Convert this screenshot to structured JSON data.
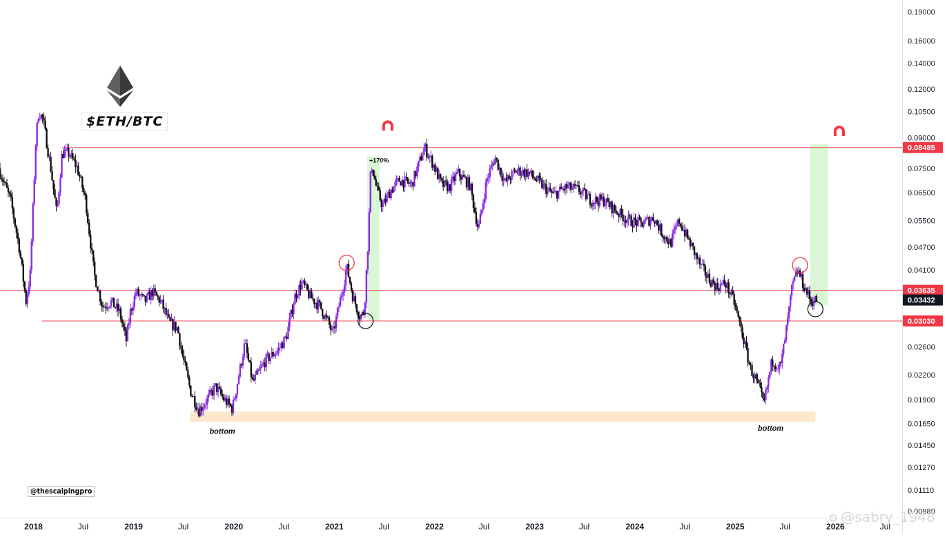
{
  "chart_data": {
    "type": "candlestick",
    "symbol": "$ETH/BTC",
    "handle": "@thescalpingpro",
    "watermark": "@sabry_1948",
    "x_range": [
      "2017-09-01",
      "2026-09-01"
    ],
    "y_range": [
      0.0095,
      0.215
    ],
    "y_scale": "log",
    "x_ticks": [
      "2018",
      "Jul",
      "2019",
      "Jul",
      "2020",
      "Jul",
      "2021",
      "Jul",
      "2022",
      "Jul",
      "2023",
      "Jul",
      "2024",
      "Jul",
      "2025",
      "Jul",
      "2026",
      "Jul"
    ],
    "y_ticks": [
      "0.19000",
      "0.16000",
      "0.14000",
      "0.12000",
      "0.10500",
      "0.09000",
      "0.07500",
      "0.06500",
      "0.05500",
      "0.04700",
      "0.04100",
      "0.02600",
      "0.02200",
      "0.01900",
      "0.01650",
      "0.01450",
      "0.01270",
      "0.01110",
      "0.00980"
    ],
    "price_labels": [
      {
        "value": 0.08485,
        "text": "0.08485",
        "color": "#f23645"
      },
      {
        "value": 0.03635,
        "text": "0.03635",
        "color": "#f23645"
      },
      {
        "value": 0.03432,
        "text": "0.03432",
        "color": "#131722"
      },
      {
        "value": 0.0303,
        "text": "0.03030",
        "color": "#f23645"
      }
    ],
    "horizontal_levels": [
      {
        "value": 0.08485,
        "from": "2018-04-15",
        "color": "#f23645"
      },
      {
        "value": 0.03635,
        "from": "2017-09-01",
        "color": "#f23645"
      },
      {
        "value": 0.0303,
        "from": "2018-02-01",
        "color": "#f23645"
      }
    ],
    "bottom_zone": {
      "from": "2019-07-25",
      "to": "2025-10-20",
      "low": 0.01665,
      "high": 0.0177,
      "color": "#fde8cd"
    },
    "projection_boxes": [
      {
        "from": "2021-05-01",
        "to": "2021-06-15",
        "low": 0.0303,
        "high": 0.0805,
        "label": "+170%"
      },
      {
        "from": "2025-10-01",
        "to": "2025-12-05",
        "low": 0.0332,
        "high": 0.0865,
        "label": ""
      }
    ],
    "annotations": [
      {
        "text": "bottom",
        "date": "2019-11-20",
        "value": 0.0155
      },
      {
        "text": "bottom",
        "date": "2025-05-10",
        "value": 0.0158
      }
    ],
    "circles": [
      {
        "date": "2021-02-15",
        "value": 0.0428,
        "color": "#f23645"
      },
      {
        "date": "2021-04-25",
        "value": 0.0303,
        "color": "#131722"
      },
      {
        "date": "2025-08-25",
        "value": 0.0422,
        "color": "#f23645"
      },
      {
        "date": "2025-10-20",
        "value": 0.0325,
        "color": "#131722"
      }
    ],
    "magnets": [
      {
        "date": "2021-07-15",
        "value": 0.0965
      },
      {
        "date": "2026-01-15",
        "value": 0.0935
      }
    ],
    "up_color": "#8a2be2",
    "down_color": "#111111",
    "price_path": [
      [
        "2017-09-01",
        0.075
      ],
      [
        "2017-10-15",
        0.062
      ],
      [
        "2017-11-15",
        0.047
      ],
      [
        "2017-12-10",
        0.034
      ],
      [
        "2017-12-25",
        0.04
      ],
      [
        "2018-01-15",
        0.09
      ],
      [
        "2018-01-25",
        0.105
      ],
      [
        "2018-02-10",
        0.1
      ],
      [
        "2018-03-10",
        0.075
      ],
      [
        "2018-04-01",
        0.057
      ],
      [
        "2018-04-20",
        0.082
      ],
      [
        "2018-05-15",
        0.082
      ],
      [
        "2018-06-15",
        0.075
      ],
      [
        "2018-07-15",
        0.062
      ],
      [
        "2018-08-15",
        0.04
      ],
      [
        "2018-09-15",
        0.033
      ],
      [
        "2018-10-15",
        0.034
      ],
      [
        "2018-11-15",
        0.032
      ],
      [
        "2018-12-10",
        0.027
      ],
      [
        "2018-12-25",
        0.032
      ],
      [
        "2019-01-15",
        0.036
      ],
      [
        "2019-02-15",
        0.034
      ],
      [
        "2019-03-15",
        0.036
      ],
      [
        "2019-04-15",
        0.034
      ],
      [
        "2019-05-15",
        0.03
      ],
      [
        "2019-06-15",
        0.029
      ],
      [
        "2019-07-01",
        0.025
      ],
      [
        "2019-08-01",
        0.02
      ],
      [
        "2019-09-01",
        0.0178
      ],
      [
        "2019-10-01",
        0.019
      ],
      [
        "2019-11-01",
        0.0205
      ],
      [
        "2019-12-01",
        0.019
      ],
      [
        "2020-01-01",
        0.018
      ],
      [
        "2020-02-15",
        0.0265
      ],
      [
        "2020-03-15",
        0.021
      ],
      [
        "2020-05-01",
        0.024
      ],
      [
        "2020-06-15",
        0.0255
      ],
      [
        "2020-07-15",
        0.0275
      ],
      [
        "2020-08-15",
        0.035
      ],
      [
        "2020-09-10",
        0.038
      ],
      [
        "2020-10-10",
        0.035
      ],
      [
        "2020-11-15",
        0.033
      ],
      [
        "2020-12-15",
        0.03
      ],
      [
        "2021-01-01",
        0.028
      ],
      [
        "2021-02-10",
        0.038
      ],
      [
        "2021-02-20",
        0.042
      ],
      [
        "2021-03-15",
        0.035
      ],
      [
        "2021-04-10",
        0.031
      ],
      [
        "2021-04-25",
        0.032
      ],
      [
        "2021-05-10",
        0.05
      ],
      [
        "2021-05-20",
        0.078
      ],
      [
        "2021-06-10",
        0.066
      ],
      [
        "2021-07-01",
        0.06
      ],
      [
        "2021-08-01",
        0.066
      ],
      [
        "2021-09-01",
        0.07
      ],
      [
        "2021-10-15",
        0.068
      ],
      [
        "2021-12-01",
        0.085
      ],
      [
        "2022-01-01",
        0.077
      ],
      [
        "2022-02-01",
        0.068
      ],
      [
        "2022-03-01",
        0.067
      ],
      [
        "2022-04-01",
        0.073
      ],
      [
        "2022-05-15",
        0.068
      ],
      [
        "2022-06-15",
        0.052
      ],
      [
        "2022-07-15",
        0.07
      ],
      [
        "2022-08-15",
        0.08
      ],
      [
        "2022-09-20",
        0.069
      ],
      [
        "2022-11-01",
        0.074
      ],
      [
        "2022-12-15",
        0.073
      ],
      [
        "2023-02-01",
        0.068
      ],
      [
        "2023-03-15",
        0.064
      ],
      [
        "2023-05-01",
        0.067
      ],
      [
        "2023-06-15",
        0.066
      ],
      [
        "2023-08-01",
        0.062
      ],
      [
        "2023-09-15",
        0.062
      ],
      [
        "2023-11-01",
        0.058
      ],
      [
        "2023-12-15",
        0.055
      ],
      [
        "2024-02-01",
        0.054
      ],
      [
        "2024-03-15",
        0.056
      ],
      [
        "2024-04-15",
        0.051
      ],
      [
        "2024-05-15",
        0.048
      ],
      [
        "2024-06-15",
        0.055
      ],
      [
        "2024-08-01",
        0.047
      ],
      [
        "2024-09-01",
        0.042
      ],
      [
        "2024-10-01",
        0.039
      ],
      [
        "2024-11-01",
        0.037
      ],
      [
        "2024-12-01",
        0.038
      ],
      [
        "2025-01-01",
        0.034
      ],
      [
        "2025-02-01",
        0.028
      ],
      [
        "2025-03-01",
        0.023
      ],
      [
        "2025-04-01",
        0.0205
      ],
      [
        "2025-04-20",
        0.0184
      ],
      [
        "2025-05-20",
        0.024
      ],
      [
        "2025-06-20",
        0.023
      ],
      [
        "2025-07-15",
        0.03
      ],
      [
        "2025-08-01",
        0.037
      ],
      [
        "2025-08-22",
        0.041
      ],
      [
        "2025-09-15",
        0.037
      ],
      [
        "2025-10-10",
        0.034
      ],
      [
        "2025-10-25",
        0.0343
      ]
    ]
  }
}
